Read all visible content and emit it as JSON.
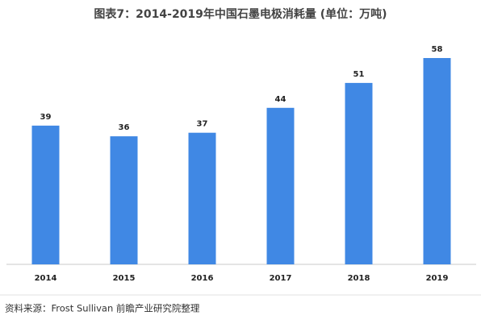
{
  "chart_data": {
    "type": "bar",
    "title": "图表7：2014-2019年中国石墨电极消耗量 (单位：万吨)",
    "categories": [
      "2014",
      "2015",
      "2016",
      "2017",
      "2018",
      "2019"
    ],
    "values": [
      39,
      36,
      37,
      44,
      51,
      58
    ],
    "color": "#4088e4"
  },
  "source": "资料来源：Frost Sullivan  前瞻产业研究院整理"
}
